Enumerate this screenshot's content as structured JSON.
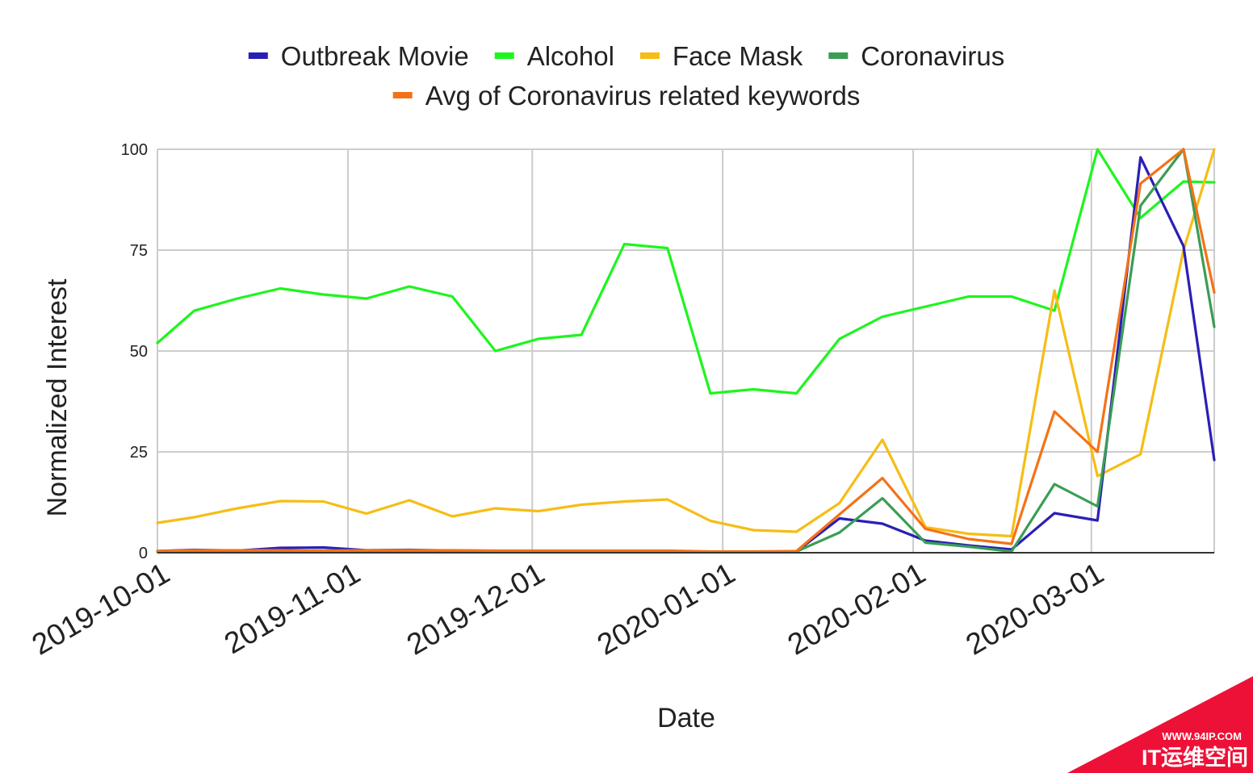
{
  "chart_data": {
    "type": "line",
    "xlabel": "Date",
    "ylabel": "Normalized Interest",
    "ylim": [
      0,
      100
    ],
    "yticks": [
      0,
      25,
      50,
      75,
      100
    ],
    "xlim": [
      "2019-10-01",
      "2020-03-21"
    ],
    "xticks": [
      "2019-10-01",
      "2019-11-01",
      "2019-12-01",
      "2020-01-01",
      "2020-02-01",
      "2020-03-01"
    ],
    "grid": true,
    "legend_position": "top",
    "x": [
      "2019-10-01",
      "2019-10-07",
      "2019-10-14",
      "2019-10-21",
      "2019-10-28",
      "2019-11-04",
      "2019-11-11",
      "2019-11-18",
      "2019-11-25",
      "2019-12-02",
      "2019-12-09",
      "2019-12-16",
      "2019-12-23",
      "2019-12-30",
      "2020-01-06",
      "2020-01-13",
      "2020-01-20",
      "2020-01-27",
      "2020-02-03",
      "2020-02-10",
      "2020-02-17",
      "2020-02-24",
      "2020-03-02",
      "2020-03-09",
      "2020-03-16",
      "2020-03-21"
    ],
    "series": [
      {
        "name": "Outbreak Movie",
        "color": "#2a1fb5",
        "values": [
          0.4,
          0.7,
          0.5,
          1.2,
          1.3,
          0.6,
          0.7,
          0.5,
          0.4,
          0.4,
          0.3,
          0.3,
          0.3,
          0.2,
          0.2,
          0.3,
          8.5,
          7.2,
          3.0,
          1.8,
          0.8,
          9.8,
          8.0,
          98.0,
          76.0,
          23.0
        ]
      },
      {
        "name": "Alcohol",
        "color": "#1ef51e",
        "values": [
          52,
          60,
          63,
          65.5,
          64,
          63,
          66,
          63.5,
          50,
          53,
          54,
          76.5,
          75.5,
          39.5,
          40.5,
          39.5,
          53,
          58.5,
          61,
          63.5,
          63.5,
          60,
          100,
          83,
          92,
          91.8
        ]
      },
      {
        "name": "Face Mask",
        "color": "#f6bd16",
        "values": [
          7.4,
          8.8,
          11,
          12.8,
          12.7,
          9.7,
          13,
          9,
          11,
          10.3,
          11.9,
          12.7,
          13.2,
          7.9,
          5.6,
          5.2,
          12.3,
          28,
          6.3,
          4.7,
          4.1,
          65,
          19,
          24.4,
          75,
          100
        ]
      },
      {
        "name": "Coronavirus",
        "color": "#3b9d54",
        "values": [
          0.2,
          0.2,
          0.2,
          0.2,
          0.2,
          0.2,
          0.2,
          0.2,
          0.2,
          0.2,
          0.2,
          0.2,
          0.2,
          0.2,
          0.2,
          0.3,
          5,
          13.5,
          2.5,
          1.5,
          0.3,
          17,
          11.5,
          86,
          100,
          56
        ]
      },
      {
        "name": "Avg of Coronavirus related keywords",
        "color": "#f47217",
        "values": [
          0.4,
          0.6,
          0.6,
          0.6,
          0.5,
          0.6,
          0.6,
          0.6,
          0.5,
          0.5,
          0.5,
          0.5,
          0.5,
          0.3,
          0.3,
          0.4,
          9.5,
          18.5,
          5.9,
          3.4,
          2.2,
          35,
          25,
          91.5,
          100,
          64.5
        ]
      }
    ]
  },
  "watermark": {
    "url": "WWW.94IP.COM",
    "text": "IT运维空间",
    "color": "#ee1137"
  }
}
